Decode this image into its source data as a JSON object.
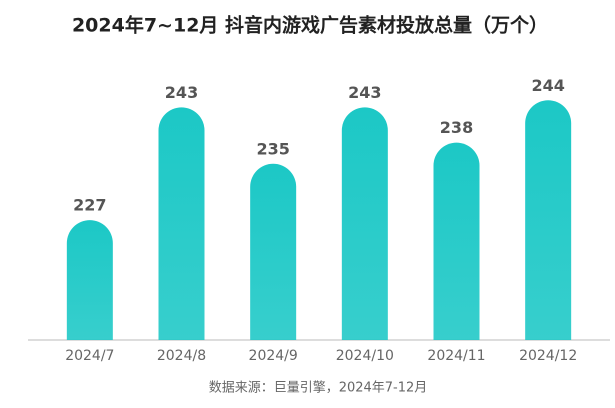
{
  "chart_data": {
    "type": "bar",
    "title": "2024年7~12月 抖音内游戏广告素材投放总量（万个）",
    "categories": [
      "2024/7",
      "2024/8",
      "2024/9",
      "2024/10",
      "2024/11",
      "2024/12"
    ],
    "values": [
      227,
      243,
      235,
      243,
      238,
      244
    ],
    "color": "#1cc8c6",
    "ylim": [
      210,
      250
    ],
    "source": "数据来源：巨量引擎，2024年7-12月"
  }
}
